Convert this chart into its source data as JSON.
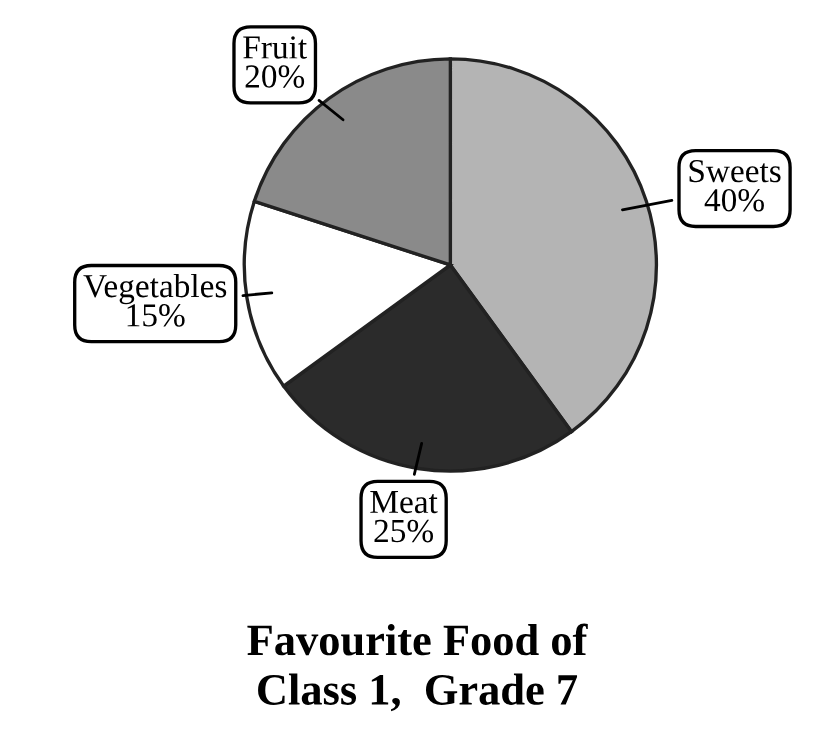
{
  "chart_data": {
    "type": "pie",
    "title": "Favourite Food of\nClass 1,  Grade 7",
    "categories": [
      "Sweets",
      "Meat",
      "Vegetables",
      "Fruit"
    ],
    "values": [
      40,
      25,
      15,
      20
    ],
    "value_labels": [
      "40%",
      "25%",
      "15%",
      "20%"
    ],
    "colors": [
      "#b4b4b4",
      "#2b2b2b",
      "#ffffff",
      "#8a8a8a"
    ]
  }
}
